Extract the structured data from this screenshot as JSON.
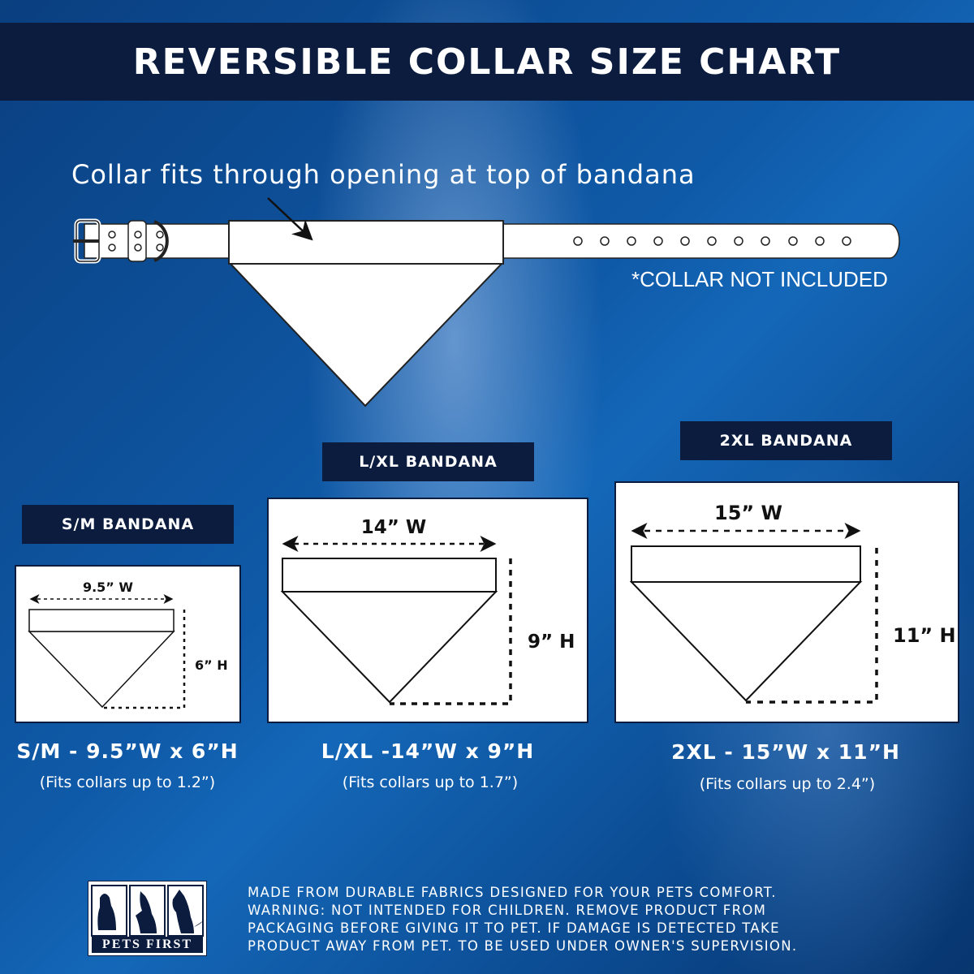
{
  "header": {
    "title": "REVERSIBLE COLLAR SIZE CHART"
  },
  "diagram": {
    "caption": "Collar fits through opening at top of bandana",
    "note": "*COLLAR NOT INCLUDED"
  },
  "sizes": [
    {
      "label": "S/M BANDANA",
      "width": "9.5” W",
      "height": "6” H",
      "caption": "S/M - 9.5”W x 6”H",
      "fit": "(Fits collars up to 1.2”)"
    },
    {
      "label": "L/XL BANDANA",
      "width": "14” W",
      "height": "9” H",
      "caption": "L/XL -14”W x 9”H",
      "fit": "(Fits collars up to 1.7”)"
    },
    {
      "label": "2XL BANDANA",
      "width": "15” W",
      "height": "11” H",
      "caption": "2XL - 15”W x 11”H",
      "fit": "(Fits collars up to 2.4”)"
    }
  ],
  "footer": {
    "logo_text": "PETS FIRST",
    "warning": [
      "MADE FROM DURABLE FABRICS DESIGNED FOR YOUR PETS COMFORT.",
      "WARNING:  NOT  INTENDED  FOR  CHILDREN. REMOVE PRODUCT FROM",
      "PACKAGING BEFORE GIVING IT TO PET.  IF DAMAGE IS DETECTED TAKE",
      "PRODUCT AWAY FROM PET. TO BE USED UNDER OWNER'S SUPERVISION."
    ]
  },
  "colors": {
    "navy": "#0b1c3f",
    "background": "#0f5aa8"
  }
}
